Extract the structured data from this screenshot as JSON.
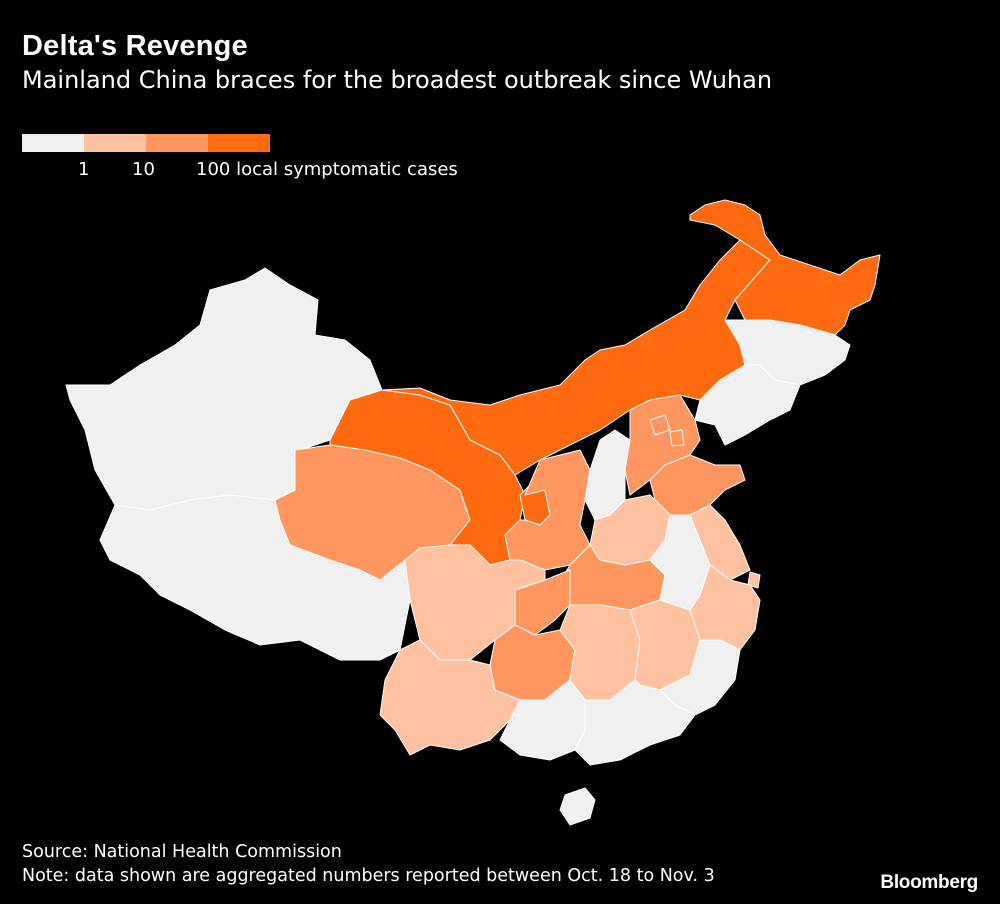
{
  "header": {
    "title": "Delta's Revenge",
    "subtitle": "Mainland China braces for the broadest outbreak since Wuhan"
  },
  "legend": {
    "bins": [
      {
        "color": "#f0f0f0"
      },
      {
        "color": "#ffc1a0"
      },
      {
        "color": "#ff9660"
      },
      {
        "color": "#ff6a10"
      }
    ],
    "ticks": [
      "1",
      "10",
      "100 local symptomatic cases"
    ]
  },
  "colors": {
    "none": "#f0f0f0",
    "low": "#ffc1a0",
    "mid": "#ff9660",
    "high": "#ff6a10",
    "background": "#000000",
    "border": "#ffffff"
  },
  "map": {
    "regions": [
      {
        "key": "xinjiang",
        "level": "none"
      },
      {
        "key": "tibet",
        "level": "none"
      },
      {
        "key": "inner-mongolia",
        "level": "high"
      },
      {
        "key": "heilongjiang",
        "level": "high"
      },
      {
        "key": "jilin",
        "level": "none"
      },
      {
        "key": "liaoning",
        "level": "none"
      },
      {
        "key": "gansu",
        "level": "high"
      },
      {
        "key": "ningxia",
        "level": "high"
      },
      {
        "key": "qinghai",
        "level": "mid"
      },
      {
        "key": "shaanxi",
        "level": "mid"
      },
      {
        "key": "shanxi",
        "level": "none"
      },
      {
        "key": "hebei",
        "level": "mid"
      },
      {
        "key": "beijing",
        "level": "mid"
      },
      {
        "key": "tianjin",
        "level": "mid"
      },
      {
        "key": "shandong",
        "level": "mid"
      },
      {
        "key": "henan",
        "level": "low"
      },
      {
        "key": "hubei",
        "level": "mid"
      },
      {
        "key": "chongqing",
        "level": "mid"
      },
      {
        "key": "sichuan",
        "level": "low"
      },
      {
        "key": "yunnan",
        "level": "low"
      },
      {
        "key": "guizhou",
        "level": "mid"
      },
      {
        "key": "hunan",
        "level": "low"
      },
      {
        "key": "jiangxi",
        "level": "low"
      },
      {
        "key": "anhui",
        "level": "none"
      },
      {
        "key": "jiangsu",
        "level": "low"
      },
      {
        "key": "zhejiang",
        "level": "low"
      },
      {
        "key": "fujian",
        "level": "none"
      },
      {
        "key": "guangdong",
        "level": "none"
      },
      {
        "key": "guangxi",
        "level": "none"
      },
      {
        "key": "hainan",
        "level": "none"
      },
      {
        "key": "shanghai",
        "level": "low"
      }
    ]
  },
  "footer": {
    "source": "Source: National Health Commission",
    "note": "Note: data shown are aggregated numbers reported between Oct. 18 to Nov. 3",
    "brand": "Bloomberg"
  }
}
